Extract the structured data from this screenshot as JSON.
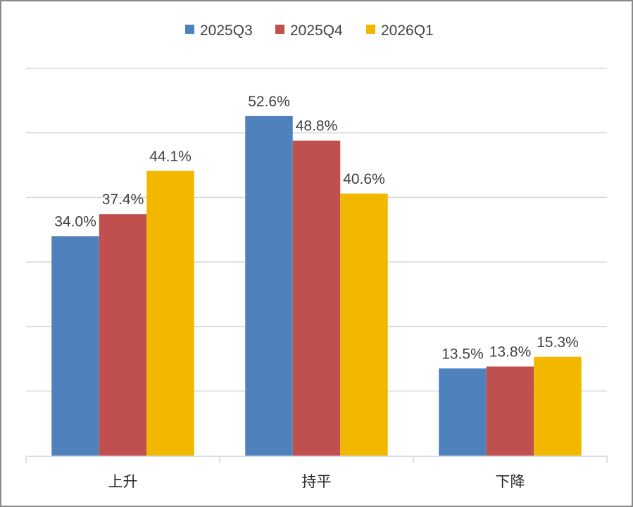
{
  "chart_data": {
    "type": "bar",
    "title": "",
    "xlabel": "",
    "ylabel": "",
    "categories": [
      "上升",
      "持平",
      "下降"
    ],
    "series": [
      {
        "name": "2025Q3",
        "color": "#4F81BD",
        "values": [
          34.0,
          52.6,
          13.5
        ],
        "labels": [
          "34.0%",
          "52.6%",
          "13.5%"
        ]
      },
      {
        "name": "2025Q4",
        "color": "#C0504D",
        "values": [
          37.4,
          48.8,
          13.8
        ],
        "labels": [
          "37.4%",
          "48.8%",
          "13.8%"
        ]
      },
      {
        "name": "2026Q1",
        "color": "#F2B800",
        "values": [
          44.1,
          40.6,
          15.3
        ],
        "labels": [
          "44.1%",
          "40.6%",
          "15.3%"
        ]
      }
    ],
    "ylim": [
      0,
      60
    ],
    "ytick_step": 10,
    "grid": true,
    "legend_position": "top-center",
    "data_labels": true
  }
}
